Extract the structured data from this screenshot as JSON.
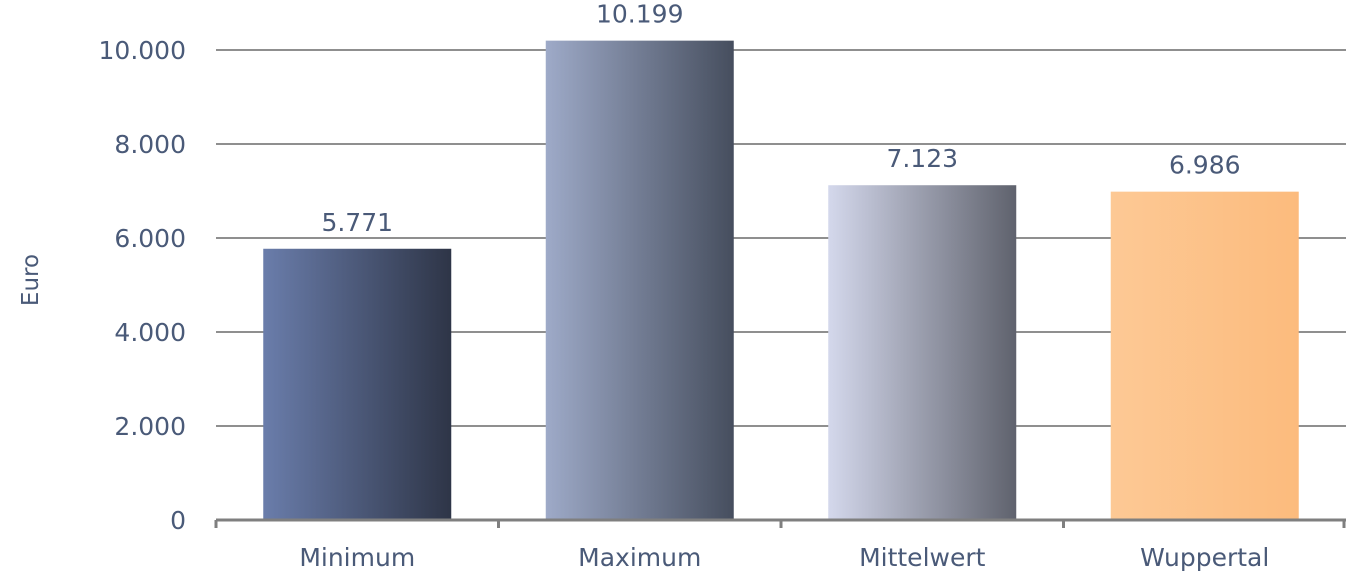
{
  "chart_data": {
    "type": "bar",
    "categories": [
      "Minimum",
      "Maximum",
      "Mittelwert",
      "Wuppertal"
    ],
    "values": [
      5771,
      10199,
      7123,
      6986
    ],
    "value_labels": [
      "5.771",
      "10.199",
      "7.123",
      "6.986"
    ],
    "title": "",
    "xlabel": "",
    "ylabel": "Euro",
    "ylim": [
      0,
      10000
    ],
    "yticks": [
      0,
      2000,
      4000,
      6000,
      8000,
      10000
    ],
    "ytick_labels": [
      "0",
      "2.000",
      "4.000",
      "6.000",
      "8.000",
      "10.000"
    ],
    "grid": true,
    "legend": "none",
    "colors": {
      "bars": [
        [
          "#6a7dab",
          "#2e3547"
        ],
        [
          "#9eaac8",
          "#464e5e"
        ],
        [
          "#d4d8ec",
          "#5f626d"
        ],
        [
          "#fdc995",
          "#fcbb7d"
        ]
      ],
      "text": "#4a5a78",
      "grid": "#8f8f8f",
      "axis": "#7f7f7f"
    }
  }
}
